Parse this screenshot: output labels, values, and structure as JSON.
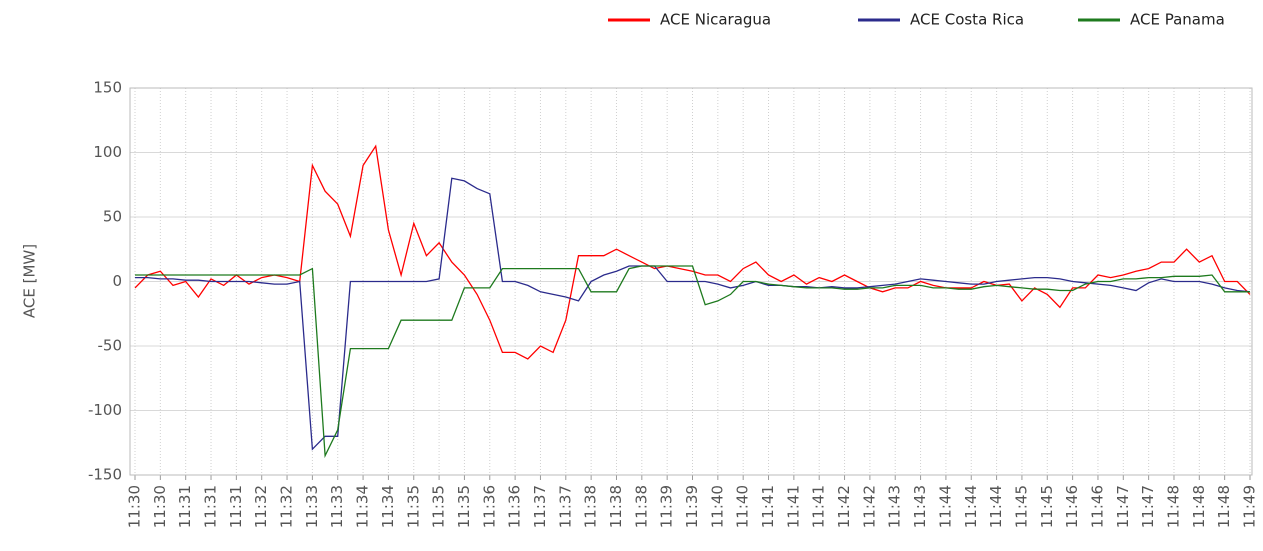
{
  "chart_data": {
    "type": "line",
    "ylabel": "ACE [MW]",
    "categories": [
      "11:30",
      null,
      "11:30",
      null,
      "11:31",
      null,
      "11:31",
      null,
      "11:31",
      null,
      "11:32",
      null,
      "11:32",
      null,
      "11:33",
      null,
      "11:33",
      null,
      "11:34",
      null,
      "11:34",
      null,
      "11:35",
      null,
      "11:35",
      null,
      "11:35",
      null,
      "11:36",
      null,
      "11:36",
      null,
      "11:37",
      null,
      "11:37",
      null,
      "11:38",
      null,
      "11:38",
      null,
      "11:38",
      null,
      "11:39",
      null,
      "11:39",
      null,
      "11:40",
      null,
      "11:40",
      null,
      "11:41",
      null,
      "11:41",
      null,
      "11:41",
      null,
      "11:42",
      null,
      "11:42",
      null,
      "11:43",
      null,
      "11:43",
      null,
      "11:44",
      null,
      "11:44",
      null,
      "11:44",
      null,
      "11:45",
      null,
      "11:45",
      null,
      "11:46",
      null,
      "11:46",
      null,
      "11:47",
      null,
      "11:47",
      null,
      "11:48",
      null,
      "11:48",
      null,
      "11:48",
      null,
      "11:49"
    ],
    "series": [
      {
        "name": "ACE Nicaragua",
        "color": "#ff0000",
        "values": [
          -5,
          5,
          8,
          -3,
          0,
          -12,
          2,
          -3,
          5,
          -2,
          3,
          5,
          3,
          0,
          90,
          70,
          60,
          35,
          90,
          105,
          40,
          5,
          45,
          20,
          30,
          15,
          5,
          -10,
          -30,
          -55,
          -55,
          -60,
          -50,
          -55,
          -30,
          20,
          20,
          20,
          25,
          20,
          15,
          10,
          12,
          10,
          8,
          5,
          5,
          0,
          10,
          15,
          5,
          0,
          5,
          -2,
          3,
          0,
          5,
          0,
          -5,
          -8,
          -5,
          -5,
          0,
          -3,
          -5,
          -5,
          -5,
          0,
          -3,
          -2,
          -15,
          -5,
          -10,
          -20,
          -5,
          -5,
          5,
          3,
          5,
          8,
          10,
          15,
          15,
          25,
          15,
          20,
          0,
          0,
          -10
        ]
      },
      {
        "name": "ACE Costa Rica",
        "color": "#2b2b8c",
        "values": [
          3,
          3,
          2,
          2,
          1,
          1,
          0,
          0,
          0,
          0,
          -1,
          -2,
          -2,
          0,
          -130,
          -120,
          -120,
          0,
          0,
          0,
          0,
          0,
          0,
          0,
          2,
          80,
          78,
          72,
          68,
          0,
          0,
          -3,
          -8,
          -10,
          -12,
          -15,
          0,
          5,
          8,
          12,
          12,
          12,
          0,
          0,
          0,
          0,
          -2,
          -5,
          -3,
          0,
          -3,
          -3,
          -4,
          -4,
          -5,
          -4,
          -5,
          -5,
          -4,
          -3,
          -2,
          0,
          2,
          1,
          0,
          -1,
          -2,
          -2,
          0,
          1,
          2,
          3,
          3,
          2,
          0,
          -1,
          -2,
          -3,
          -5,
          -7,
          -1,
          2,
          0,
          0,
          0,
          -2,
          -5,
          -7,
          -8
        ]
      },
      {
        "name": "ACE Panama",
        "color": "#1e7a1e",
        "values": [
          5,
          5,
          5,
          5,
          5,
          5,
          5,
          5,
          5,
          5,
          5,
          5,
          5,
          5,
          10,
          -135,
          -115,
          -52,
          -52,
          -52,
          -52,
          -30,
          -30,
          -30,
          -30,
          -30,
          -5,
          -5,
          -5,
          10,
          10,
          10,
          10,
          10,
          10,
          10,
          -8,
          -8,
          -8,
          10,
          12,
          12,
          12,
          12,
          12,
          -18,
          -15,
          -10,
          0,
          0,
          -2,
          -3,
          -4,
          -5,
          -5,
          -5,
          -6,
          -6,
          -5,
          -5,
          -3,
          -3,
          -3,
          -5,
          -5,
          -6,
          -6,
          -4,
          -3,
          -4,
          -5,
          -6,
          -6,
          -7,
          -7,
          -2,
          0,
          0,
          2,
          2,
          3,
          3,
          4,
          4,
          4,
          5,
          -8,
          -8,
          -8
        ]
      }
    ],
    "ylim": [
      -150,
      150
    ],
    "yticks": [
      -150,
      -100,
      -50,
      0,
      50,
      100,
      150
    ],
    "grid": true,
    "legend": "top-right"
  }
}
